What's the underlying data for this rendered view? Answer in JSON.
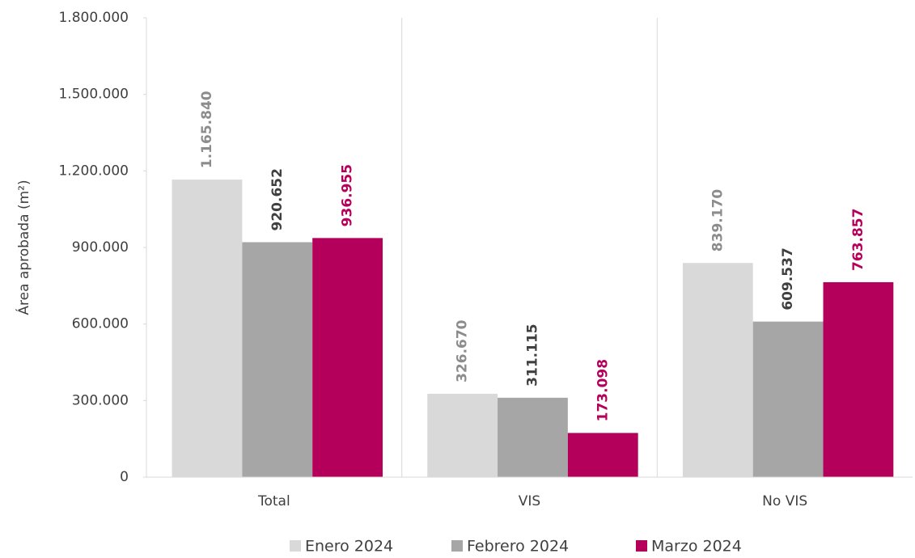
{
  "chart_data": {
    "type": "bar",
    "y_label": "Área aprobada (m²)",
    "categories": [
      "Total",
      "VIS",
      "No VIS"
    ],
    "series": [
      {
        "name": "Enero 2024",
        "color": "#d9d9d9",
        "label_color": "#8c8c8c",
        "values": [
          1165840,
          326670,
          839170
        ],
        "value_labels": [
          "1.165.840",
          "326.670",
          "839.170"
        ]
      },
      {
        "name": "Febrero 2024",
        "color": "#a6a6a6",
        "label_color": "#404040",
        "values": [
          920652,
          311115,
          609537
        ],
        "value_labels": [
          "920.652",
          "311.115",
          "609.537"
        ]
      },
      {
        "name": "Marzo 2024",
        "color": "#b5005b",
        "label_color": "#b5005b",
        "values": [
          936955,
          173098,
          763857
        ],
        "value_labels": [
          "936.955",
          "173.098",
          "763.857"
        ]
      }
    ],
    "ylim": [
      0,
      1800000
    ],
    "yticks": [
      0,
      {
        "value": 300000,
        "label": "300.000"
      },
      {
        "value": 600000,
        "label": "600.000"
      },
      {
        "value": 900000,
        "label": "900.000"
      },
      {
        "value": 1200000,
        "label": "1.200.000"
      },
      {
        "value": 1500000,
        "label": "1.500.000"
      },
      {
        "value": 1800000,
        "label": "1.800.000"
      }
    ],
    "grid": false,
    "legend": "bottom"
  }
}
